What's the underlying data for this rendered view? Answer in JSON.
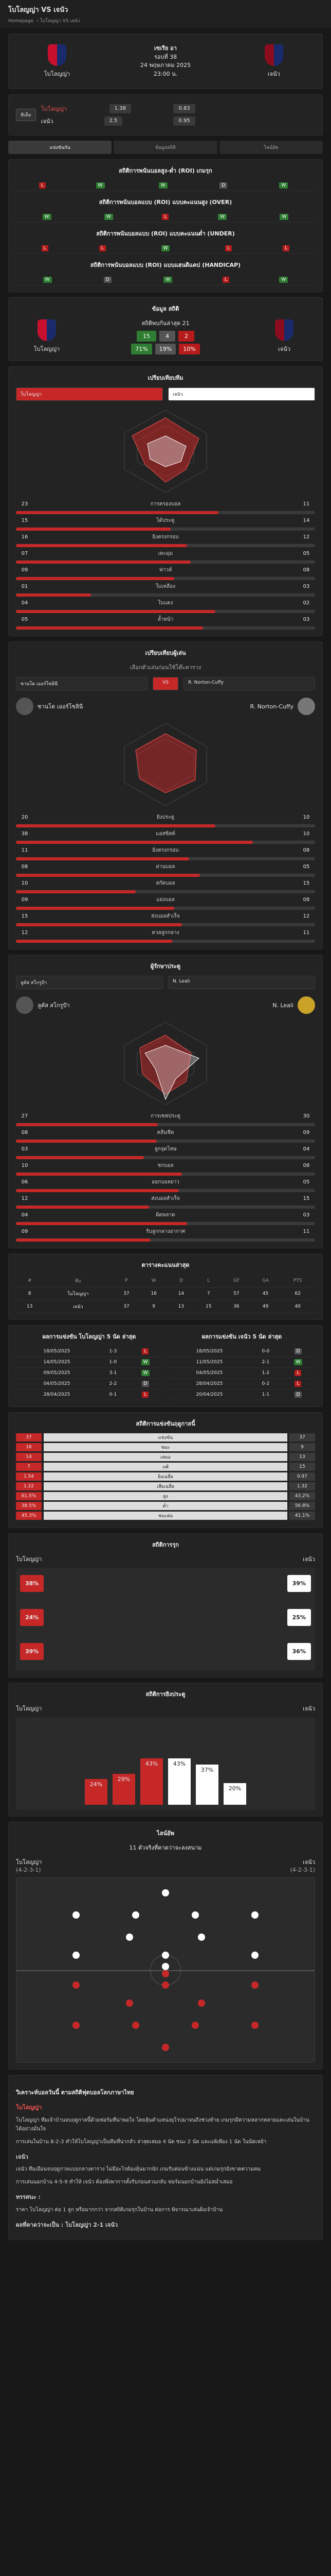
{
  "header": {
    "title": "โบโลญญ่า VS เจนัว",
    "crumbs": [
      "Homepage",
      "โบโลญญ่า VS เจนัว"
    ]
  },
  "match": {
    "league": "เซเรีย อา",
    "round": "รอบที่ 38",
    "date": "24 พฤษภาคม 2025",
    "time": "23:00 น.",
    "home": "โบโลญญ่า",
    "away": "เจนัว"
  },
  "odds": {
    "btn": "ทีเด็ด",
    "home": "โบโลญญ่า",
    "away": "เจนัว",
    "v1": "1.38",
    "v2": "0.83",
    "v3": "2.5",
    "v4": "0.95"
  },
  "tabs": [
    "แข่งขันกัน",
    "ข้อมูลสถิติ",
    "ไลน์อัพ"
  ],
  "ou_titles": [
    "สถิติการพนันบอลสูง-ต่ำ (ROI) เกมรุก",
    "สถิติการพนันบอลแบบ (ROI) แบบคะแนนสูง (OVER)",
    "สถิติการพนันบอลแบบ (ROI) แบบคะแนนต่ำ (UNDER)",
    "สถิติการพนันบอลแบบ (ROI) แบบแฮนดิแคป (HANDICAP)"
  ],
  "h2h": {
    "title": "ข้อมูล สถิติ",
    "sub": "สถิติพบกันล่าสุด 21",
    "home": "โบโลญญ่า",
    "away": "เจนัว",
    "hw": "15",
    "d": "4",
    "aw": "2",
    "hp": "71%",
    "dp": "19%",
    "ap": "10%"
  },
  "team_compare": {
    "title": "เปรียบเทียบทีม",
    "home": "โบโลญญ่า",
    "away": "เจนัว",
    "rows": [
      {
        "h": "23",
        "l": "การครองบอล",
        "a": "11"
      },
      {
        "h": "15",
        "l": "ได้ประตู",
        "a": "14"
      },
      {
        "h": "16",
        "l": "ยิงตรงกรอบ",
        "a": "12"
      },
      {
        "h": "07",
        "l": "เตะมุม",
        "a": "05"
      },
      {
        "h": "09",
        "l": "ฟาวล์",
        "a": "08"
      },
      {
        "h": "01",
        "l": "ใบเหลือง",
        "a": "03"
      },
      {
        "h": "04",
        "l": "ใบแดง",
        "a": "02"
      },
      {
        "h": "05",
        "l": "ล้ำหน้า",
        "a": "03"
      }
    ]
  },
  "player_compare": {
    "title": "เปรียบเทียบผู้เล่น",
    "sub": "เลือกตัวเล่นก่อนใช้โต๊ะตาราง",
    "p1": "ซานโต เออร์โซลินี",
    "p2": "R. Norton-Cuffy",
    "vs": "VS",
    "p1b": "ซานโต เออร์โซลินี",
    "p2b": "R. Norton-Cuffy",
    "rows": [
      {
        "h": "20",
        "l": "ยิงประตู",
        "a": "10"
      },
      {
        "h": "38",
        "l": "แอสซิสต์",
        "a": "10"
      },
      {
        "h": "11",
        "l": "ยิงตรงกรอบ",
        "a": "08"
      },
      {
        "h": "08",
        "l": "ผ่านบอล",
        "a": "05"
      },
      {
        "h": "10",
        "l": "สกัดบอล",
        "a": "15"
      },
      {
        "h": "09",
        "l": "แย่งบอล",
        "a": "08"
      },
      {
        "h": "15",
        "l": "ส่งบอลสำเร็จ",
        "a": "12"
      },
      {
        "h": "12",
        "l": "ดวลลูกกลาง",
        "a": "11"
      }
    ]
  },
  "keeper": {
    "title": "ผู้รักษาประตู",
    "p1": "ลูคัส สโกรูป้า",
    "p2": "N. Leali",
    "p1b": "ลูคัส สโกรูป้า",
    "p2b": "N. Leali",
    "rows": [
      {
        "h": "27",
        "l": "การเซฟประตู",
        "a": "30"
      },
      {
        "h": "08",
        "l": "คลีนชีต",
        "a": "09"
      },
      {
        "h": "03",
        "l": "ลูกจุดโทษ",
        "a": "04"
      },
      {
        "h": "10",
        "l": "ชกบอล",
        "a": "08"
      },
      {
        "h": "06",
        "l": "ออกบอลยาว",
        "a": "05"
      },
      {
        "h": "12",
        "l": "ส่งบอลสำเร็จ",
        "a": "15"
      },
      {
        "h": "04",
        "l": "ผิดพลาด",
        "a": "03"
      },
      {
        "h": "09",
        "l": "รับลูกกลางอากาศ",
        "a": "11"
      }
    ]
  },
  "table": {
    "title": "ตารางคะแนนล่าสุด",
    "headers": [
      "#",
      "ทีม",
      "P",
      "W",
      "D",
      "L",
      "GF",
      "GA",
      "PTS"
    ],
    "rows": [
      {
        "p": "8",
        "t": "โบโลญญ่า",
        "P": "37",
        "W": "16",
        "D": "14",
        "L": "7",
        "GF": "57",
        "GA": "45",
        "PTS": "62"
      },
      {
        "p": "13",
        "t": "เจนัว",
        "P": "37",
        "W": "9",
        "D": "13",
        "L": "15",
        "GF": "36",
        "GA": "49",
        "PTS": "40"
      }
    ]
  },
  "form": {
    "home_title": "ผลการแข่งขัน โบโลญญ่า 5 นัด ล่าสุด",
    "away_title": "ผลการแข่งขัน เจนัว 5 นัด ล่าสุด",
    "home": [
      {
        "date": "18/05/2025",
        "s": "1-3",
        "r": "L"
      },
      {
        "date": "14/05/2025",
        "s": "1-0",
        "r": "W"
      },
      {
        "date": "09/05/2025",
        "s": "3-1",
        "r": "W"
      },
      {
        "date": "04/05/2025",
        "s": "2-2",
        "r": "D"
      },
      {
        "date": "28/04/2025",
        "s": "0-1",
        "r": "L"
      }
    ],
    "away": [
      {
        "date": "18/05/2025",
        "s": "0-0",
        "r": "D"
      },
      {
        "date": "11/05/2025",
        "s": "2-1",
        "r": "W"
      },
      {
        "date": "04/05/2025",
        "s": "1-2",
        "r": "L"
      },
      {
        "date": "28/04/2025",
        "s": "0-2",
        "r": "L"
      },
      {
        "date": "20/04/2025",
        "s": "1-1",
        "r": "D"
      }
    ]
  },
  "season": {
    "title": "สถิติการแข่งขันฤดูกาลนี้",
    "rows": [
      {
        "h": "37",
        "l": "แข่งขัน",
        "a": "37"
      },
      {
        "h": "16",
        "l": "ชนะ",
        "a": "9"
      },
      {
        "h": "14",
        "l": "เสมอ",
        "a": "13"
      },
      {
        "h": "7",
        "l": "แพ้",
        "a": "15"
      },
      {
        "h": "1.54",
        "l": "ยิงเฉลี่ย",
        "a": "0.97"
      },
      {
        "h": "1.22",
        "l": "เสียเฉลี่ย",
        "a": "1.32"
      },
      {
        "h": "61.5%",
        "l": "สูง",
        "a": "43.2%"
      },
      {
        "h": "38.5%",
        "l": "ต่ำ",
        "a": "56.8%"
      },
      {
        "h": "45.3%",
        "l": "ชนะต่อ",
        "a": "41.1%"
      }
    ]
  },
  "attack": {
    "title": "สถิติการรุก",
    "home": "โบโลญญ่า",
    "away": "เจนัว",
    "h": [
      "38%",
      "24%",
      "39%"
    ],
    "a": [
      "39%",
      "25%",
      "36%"
    ]
  },
  "goal_time": {
    "title": "สถิติการยิงประตู",
    "home": "โบโลญญ่า",
    "away": "เจนัว",
    "vals": [
      "24%",
      "29%",
      "43%",
      "43%",
      "37%",
      "20%"
    ]
  },
  "lineup": {
    "title": "ไลน์อัพ",
    "sub": "11 ตัวจริงที่คาดว่าจะลงสนาม",
    "home": "โบโลญญ่า",
    "away": "เจนัว",
    "hf": "(4-2-3-1)",
    "af": "(4-2-3-1)"
  },
  "analysis": {
    "title": "วิเคราะห์บอลวันนี้ ตามสถิติฟุตบอลโลกภาษาไทย",
    "home": "โบโลญญ่า",
    "away": "เจนัว",
    "p1": "โบโลญญ่า ทีมเจ้าบ้านจบฤดูกาลนี้ด้วยฟอร์มที่น่าพอใจ โดยลุ้นตำแหน่งยุโรปมาจนถึงช่วงท้าย เกมรุกมีความหลากหลายและเล่นในบ้านได้อย่างมั่นใจ",
    "p2": "การเล่นในบ้าน 8-2-3 ทำให้โบโลญญ่าเป็นทีมที่น่ากลัว ล่าสุดเสมอ 4 นัด ชนะ 2 นัด และแพ้เพียง 1 นัด ในนัดเหย้า",
    "p3": "เจนัว ทีมเยือนจบฤดูกาลแบบกลางตาราง ไม่มีอะไรต้องลุ้นมากนัก เกมรับค่อนข้างแน่น แต่เกมรุกยังขาดความคม",
    "p4": "การเล่นนอกบ้าน 4-5-9 ทำให้ เจนัว ต้องพึ่งพาการตั้งรับก่อนสวนกลับ ฟอร์มนอกบ้านยังไม่สม่ำเสมอ",
    "pred_h": "ทรรศนะ :",
    "pred": "ราคา โบโลญญ่า ต่อ 1 ลูก หรือมากกว่า จากสถิติเกมรุกในบ้าน ต่อการ พิจารณาเล่นฝั่งเจ้าบ้าน",
    "score_h": "ผลที่คาดว่าจะเป็น : โบโลญญ่า 2-1 เจนัว"
  }
}
